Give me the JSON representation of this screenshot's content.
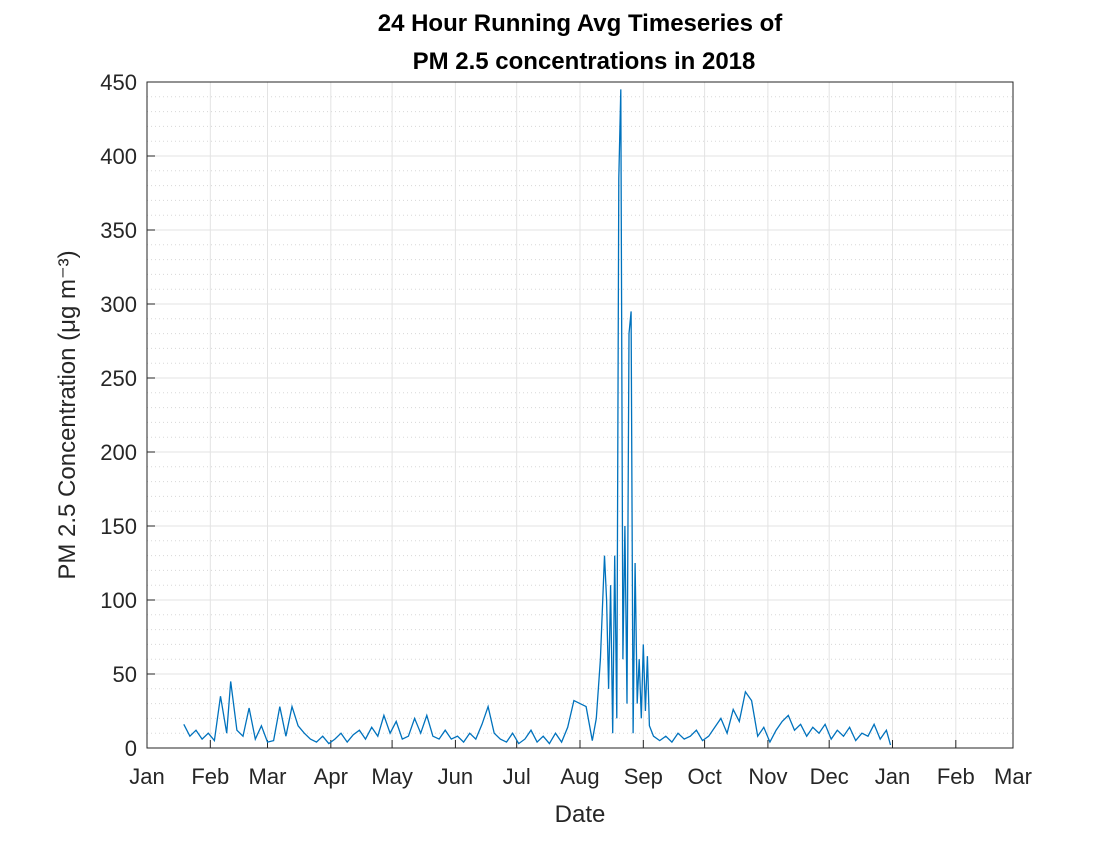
{
  "chart_data": {
    "type": "line",
    "title": [
      "24 Hour Running Avg Timeseries of",
      "PM 2.5 concentrations in 2018"
    ],
    "xlabel": "Date",
    "ylabel": "PM 2.5 Concentration (μg m⁻³)",
    "color": "#0072bd",
    "grid": true,
    "minor_grid": true,
    "xlim": [
      0,
      424
    ],
    "xticks": [
      {
        "value": 0,
        "label": "Jan"
      },
      {
        "value": 31,
        "label": "Feb"
      },
      {
        "value": 59,
        "label": "Mar"
      },
      {
        "value": 90,
        "label": "Apr"
      },
      {
        "value": 120,
        "label": "May"
      },
      {
        "value": 151,
        "label": "Jun"
      },
      {
        "value": 181,
        "label": "Jul"
      },
      {
        "value": 212,
        "label": "Aug"
      },
      {
        "value": 243,
        "label": "Sep"
      },
      {
        "value": 273,
        "label": "Oct"
      },
      {
        "value": 304,
        "label": "Nov"
      },
      {
        "value": 334,
        "label": "Dec"
      },
      {
        "value": 365,
        "label": "Jan"
      },
      {
        "value": 396,
        "label": "Feb"
      },
      {
        "value": 424,
        "label": "Mar"
      }
    ],
    "ylim": [
      0,
      450
    ],
    "yticks": [
      0,
      50,
      100,
      150,
      200,
      250,
      300,
      350,
      400,
      450
    ],
    "x": [
      18,
      21,
      24,
      27,
      30,
      33,
      36,
      39,
      41,
      44,
      47,
      50,
      53,
      56,
      59,
      62,
      65,
      68,
      71,
      74,
      77,
      80,
      83,
      86,
      89,
      92,
      95,
      98,
      101,
      104,
      107,
      110,
      113,
      116,
      119,
      122,
      125,
      128,
      131,
      134,
      137,
      140,
      143,
      146,
      149,
      152,
      155,
      158,
      161,
      164,
      167,
      170,
      173,
      176,
      179,
      182,
      185,
      188,
      191,
      194,
      197,
      200,
      203,
      206,
      209,
      212,
      215,
      218,
      220,
      222,
      224,
      225,
      226,
      227,
      228,
      229,
      230,
      231,
      232,
      233,
      234,
      235,
      236,
      237,
      238,
      239,
      240,
      241,
      242,
      243,
      244,
      245,
      246,
      248,
      251,
      254,
      257,
      260,
      263,
      266,
      269,
      272,
      275,
      278,
      281,
      284,
      287,
      290,
      293,
      296,
      299,
      302,
      305,
      308,
      311,
      314,
      317,
      320,
      323,
      326,
      329,
      332,
      335,
      338,
      341,
      344,
      347,
      350,
      353,
      356,
      359,
      362,
      364
    ],
    "values": [
      16,
      8,
      12,
      6,
      10,
      5,
      35,
      10,
      45,
      12,
      8,
      27,
      6,
      15,
      4,
      5,
      28,
      8,
      28,
      15,
      10,
      6,
      4,
      8,
      3,
      6,
      10,
      4,
      9,
      12,
      6,
      14,
      8,
      22,
      10,
      18,
      6,
      8,
      20,
      10,
      22,
      8,
      6,
      12,
      6,
      8,
      4,
      10,
      6,
      16,
      28,
      10,
      6,
      4,
      10,
      3,
      6,
      12,
      4,
      8,
      3,
      10,
      4,
      14,
      32,
      30,
      28,
      5,
      20,
      60,
      130,
      100,
      40,
      110,
      10,
      130,
      20,
      385,
      445,
      60,
      150,
      30,
      280,
      295,
      10,
      125,
      30,
      60,
      20,
      70,
      25,
      62,
      15,
      8,
      5,
      8,
      4,
      10,
      6,
      8,
      12,
      5,
      8,
      14,
      20,
      10,
      26,
      18,
      38,
      32,
      8,
      14,
      4,
      12,
      18,
      22,
      12,
      16,
      8,
      14,
      10,
      16,
      6,
      12,
      8,
      14,
      5,
      10,
      8,
      16,
      6,
      12,
      2
    ]
  }
}
